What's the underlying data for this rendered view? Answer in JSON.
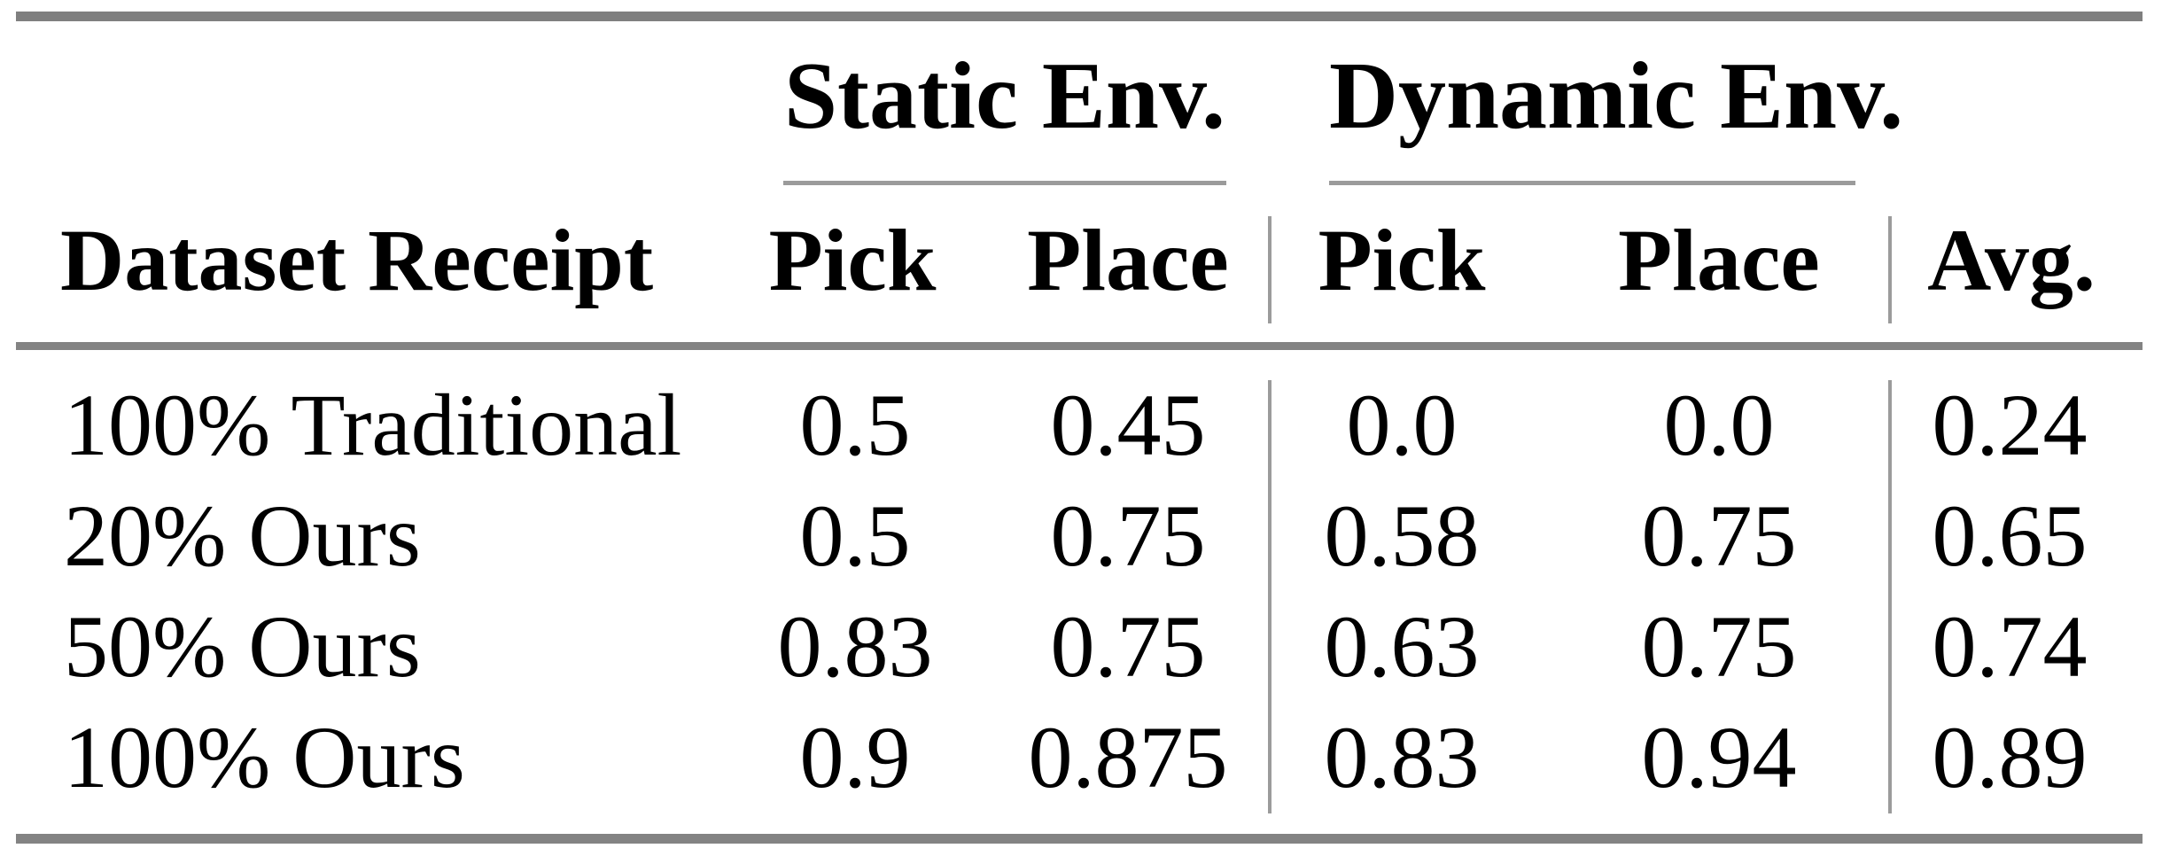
{
  "table": {
    "group_headers": {
      "static": "Static Env.",
      "dynamic": "Dynamic Env."
    },
    "column_headers": {
      "dataset": "Dataset Receipt",
      "static_pick": "Pick",
      "static_place": "Place",
      "dynamic_pick": "Pick",
      "dynamic_place": "Place",
      "avg": "Avg."
    },
    "rows": [
      [
        "100% Traditional",
        "0.5",
        "0.45",
        "0.0",
        "0.0",
        "0.24"
      ],
      [
        "20% Ours",
        "0.5",
        "0.75",
        "0.58",
        "0.75",
        "0.65"
      ],
      [
        "50% Ours",
        "0.83",
        "0.75",
        "0.63",
        "0.75",
        "0.74"
      ],
      [
        "100% Ours",
        "0.9",
        "0.875",
        "0.83",
        "0.94",
        "0.89"
      ]
    ]
  },
  "chart_data": {
    "type": "table",
    "title": "",
    "column_groups": [
      "",
      "Static Env.",
      "Static Env.",
      "Dynamic Env.",
      "Dynamic Env.",
      ""
    ],
    "columns": [
      "Dataset Receipt",
      "Pick",
      "Place",
      "Pick",
      "Place",
      "Avg."
    ],
    "rows": [
      {
        "dataset_receipt": "100% Traditional",
        "static_pick": 0.5,
        "static_place": 0.45,
        "dynamic_pick": 0.0,
        "dynamic_place": 0.0,
        "avg": 0.24
      },
      {
        "dataset_receipt": "20% Ours",
        "static_pick": 0.5,
        "static_place": 0.75,
        "dynamic_pick": 0.58,
        "dynamic_place": 0.75,
        "avg": 0.65
      },
      {
        "dataset_receipt": "50% Ours",
        "static_pick": 0.83,
        "static_place": 0.75,
        "dynamic_pick": 0.63,
        "dynamic_place": 0.75,
        "avg": 0.74
      },
      {
        "dataset_receipt": "100% Ours",
        "static_pick": 0.9,
        "static_place": 0.875,
        "dynamic_pick": 0.83,
        "dynamic_place": 0.94,
        "avg": 0.89
      }
    ]
  },
  "colors": {
    "thick_rule": "#7f7f7f",
    "thin_rule": "#9b9b9b",
    "text": "#000000",
    "background": "#ffffff"
  }
}
